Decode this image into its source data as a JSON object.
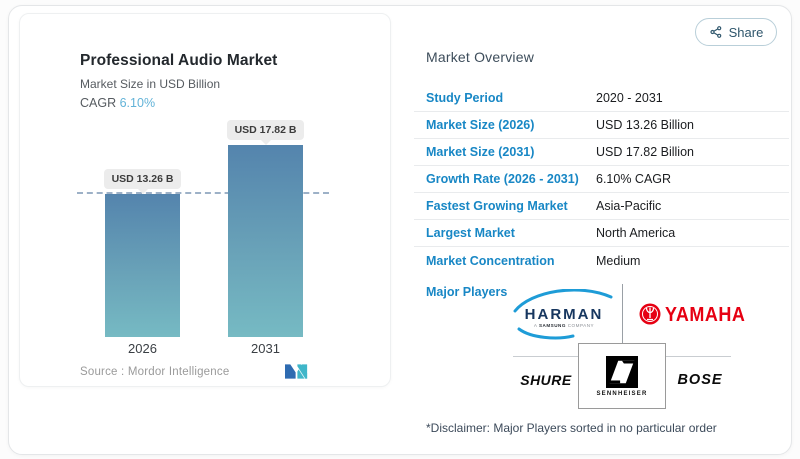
{
  "accent": {
    "label_blue": "#1887c5",
    "cagr_blue": "#62b3d8",
    "bar_top": "#5484ad",
    "bar_bottom": "#76bac3",
    "yamaha_red": "#e60012",
    "harman_navy": "#16365f"
  },
  "share": {
    "label": "Share"
  },
  "chart_card": {
    "title": "Professional Audio Market",
    "subtitle": "Market Size in USD Billion",
    "cagr_label": "CAGR",
    "cagr_value": "6.10%",
    "source_label": "Source :  Mordor Intelligence"
  },
  "chart_data": {
    "type": "bar",
    "title": "Professional Audio Market",
    "subtitle": "Market Size in USD Billion",
    "categories": [
      "2026",
      "2031"
    ],
    "values": [
      13.26,
      17.82
    ],
    "unit": "USD Billion",
    "bar_labels": [
      "USD 13.26 B",
      "USD 17.82 B"
    ],
    "cagr": "6.10%",
    "baseline_value": 13.26,
    "ylim": [
      0,
      19.5
    ],
    "grid": false,
    "legend": false
  },
  "overview": {
    "heading": "Market Overview",
    "rows": [
      {
        "label": "Study Period",
        "value": "2020 - 2031"
      },
      {
        "label": "Market Size (2026)",
        "value": "USD 13.26 Billion"
      },
      {
        "label": "Market Size (2031)",
        "value": "USD 17.82 Billion"
      },
      {
        "label": "Growth Rate (2026 - 2031)",
        "value": "6.10% CAGR"
      },
      {
        "label": "Fastest Growing Market",
        "value": "Asia-Pacific"
      },
      {
        "label": "Largest Market",
        "value": "North America"
      },
      {
        "label": "Market Concentration",
        "value": "Medium"
      }
    ],
    "major_players_label": "Major Players",
    "players": [
      "HARMAN",
      "YAMAHA",
      "SHURE",
      "SENNHEISER",
      "BOSE"
    ],
    "harman_subtext": "A SAMSUNG COMPANY",
    "disclaimer": "*Disclaimer: Major Players sorted in no particular order"
  }
}
